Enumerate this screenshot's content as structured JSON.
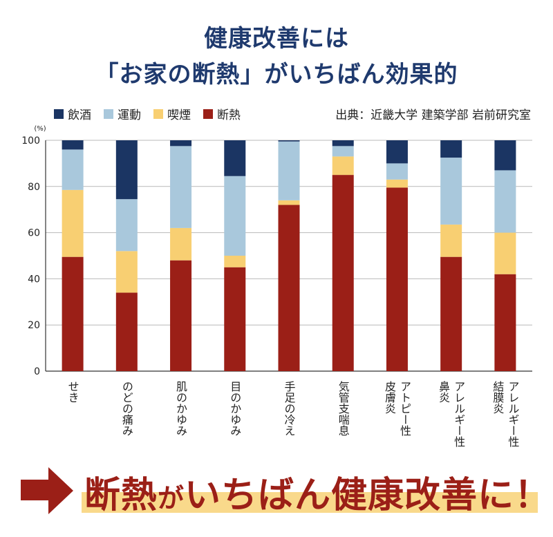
{
  "title_line1": "健康改善には",
  "title_line2": "「お家の断熱」がいちばん効果的",
  "source": "出典：近畿大学 建築学部 岩前研究室",
  "slogan": {
    "part1": "断熱",
    "part2": "が",
    "part3": "いちばん健康改善に！"
  },
  "chart_data": {
    "type": "bar",
    "stacked": true,
    "unit_label": "(%)",
    "ylim": [
      0,
      100
    ],
    "yticks": [
      0,
      20,
      40,
      60,
      80,
      100
    ],
    "grid": true,
    "legend_position": "top-left",
    "categories": [
      "せき",
      "のどの痛み",
      "肌のかゆみ",
      "目のかゆみ",
      "手足の冷え",
      "気管支喘息",
      "アトピー性皮膚炎",
      "アレルギー性鼻炎",
      "アレルギー性結膜炎"
    ],
    "category_labels": [
      [
        "せき"
      ],
      [
        "のどの痛み"
      ],
      [
        "肌のかゆみ"
      ],
      [
        "目のかゆみ"
      ],
      [
        "手足の冷え"
      ],
      [
        "気管支喘息"
      ],
      [
        "アトピー性",
        "皮膚炎"
      ],
      [
        "アレルギー性",
        "鼻炎"
      ],
      [
        "アレルギー性",
        "結膜炎"
      ]
    ],
    "series": [
      {
        "name": "断熱",
        "color": "#9b1f17",
        "values": [
          49.5,
          34,
          48,
          45,
          72,
          85,
          79.5,
          49.5,
          42
        ]
      },
      {
        "name": "喫煙",
        "color": "#f8cf72",
        "values": [
          29,
          18,
          14,
          5,
          2,
          8,
          3.5,
          14,
          18
        ]
      },
      {
        "name": "運動",
        "color": "#a9c8dc",
        "values": [
          17.5,
          22.5,
          35.5,
          34.5,
          25.5,
          4.5,
          7,
          29,
          27
        ]
      },
      {
        "name": "飲酒",
        "color": "#1b3563",
        "values": [
          4,
          25.5,
          2.5,
          15.5,
          0.5,
          2.5,
          10,
          7.5,
          13
        ]
      }
    ],
    "legend_order": [
      "飲酒",
      "運動",
      "喫煙",
      "断熱"
    ]
  }
}
